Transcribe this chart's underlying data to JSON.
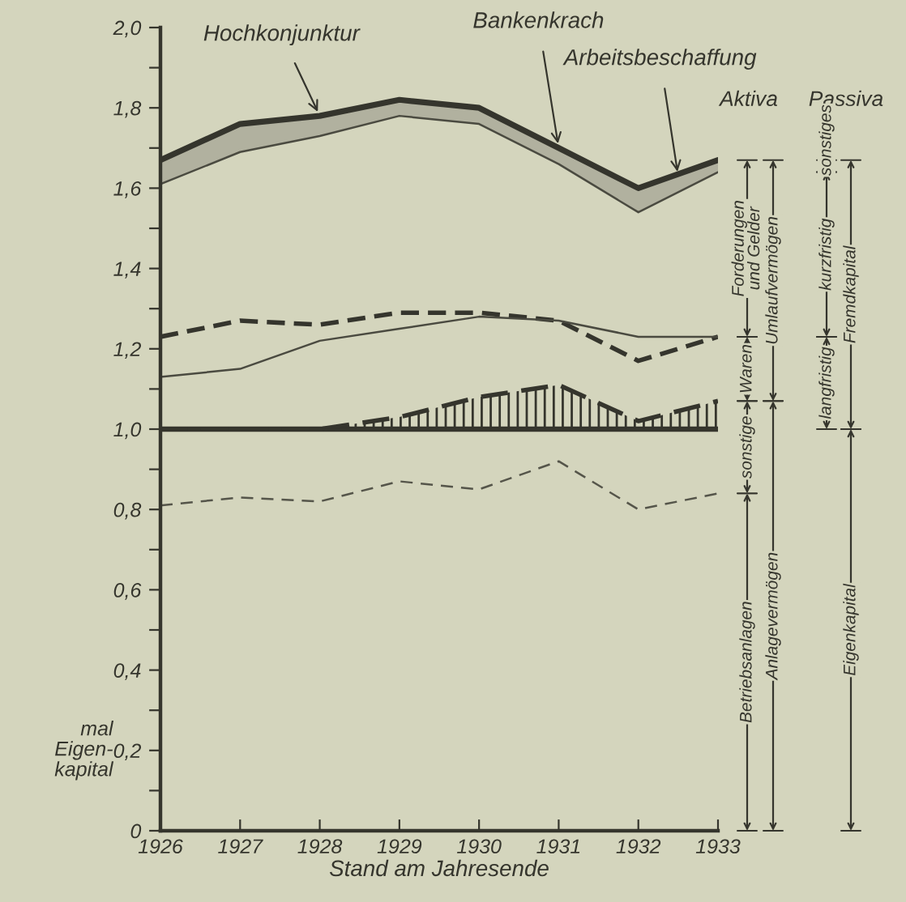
{
  "chart_data": {
    "type": "line",
    "xlabel": "Stand am Jahresende",
    "ylabel": "mal\nEigen-\nkapital",
    "x": [
      1926,
      1927,
      1928,
      1929,
      1930,
      1931,
      1932,
      1933
    ],
    "xlim": [
      1926,
      1933
    ],
    "xticks": [
      1926,
      1927,
      1928,
      1929,
      1930,
      1931,
      1932,
      1933
    ],
    "ylim": [
      0,
      2.0
    ],
    "yticks": [
      {
        "value": 0,
        "label": "0"
      },
      {
        "value": 0.1,
        "label": null
      },
      {
        "value": 0.2,
        "label": "0,2"
      },
      {
        "value": 0.3,
        "label": null
      },
      {
        "value": 0.4,
        "label": "0,4"
      },
      {
        "value": 0.5,
        "label": null
      },
      {
        "value": 0.6,
        "label": "0,6"
      },
      {
        "value": 0.7,
        "label": null
      },
      {
        "value": 0.8,
        "label": "0,8"
      },
      {
        "value": 0.9,
        "label": null
      },
      {
        "value": 1.0,
        "label": "1,0"
      },
      {
        "value": 1.1,
        "label": null
      },
      {
        "value": 1.2,
        "label": "1,2"
      },
      {
        "value": 1.3,
        "label": null
      },
      {
        "value": 1.4,
        "label": "1,4"
      },
      {
        "value": 1.5,
        "label": null
      },
      {
        "value": 1.6,
        "label": "1,6"
      },
      {
        "value": 1.7,
        "label": null
      },
      {
        "value": 1.8,
        "label": "1,8"
      },
      {
        "value": 1.9,
        "label": null
      },
      {
        "value": 2.0,
        "label": "2,0"
      }
    ],
    "grid": false,
    "ref_lines": [
      {
        "axis": "y",
        "value": 1.0,
        "color": "#35352d"
      }
    ],
    "series": [
      {
        "color": "#35352d",
        "line_style": "solid",
        "values": [
          1.67,
          1.76,
          1.78,
          1.82,
          1.8,
          1.7,
          1.6,
          1.67
        ],
        "lower": [
          1.61,
          1.69,
          1.73,
          1.78,
          1.76,
          1.66,
          1.54,
          1.64
        ],
        "upper": [
          1.67,
          1.76,
          1.78,
          1.82,
          1.8,
          1.7,
          1.6,
          1.67
        ]
      },
      {
        "color": "#4a4a40",
        "line_style": "solid",
        "values": [
          1.61,
          1.69,
          1.73,
          1.78,
          1.76,
          1.66,
          1.54,
          1.64
        ]
      },
      {
        "color": "#35352d",
        "line_style": "dashed",
        "values": [
          1.23,
          1.27,
          1.26,
          1.29,
          1.29,
          1.27,
          1.17,
          1.23
        ]
      },
      {
        "color": "#4a4a40",
        "line_style": "solid",
        "values": [
          1.13,
          1.15,
          1.22,
          1.25,
          1.28,
          1.27,
          1.23,
          1.23
        ]
      },
      {
        "color": "#35352d",
        "line_style": "dashed",
        "values": [
          1.0,
          1.0,
          1.0,
          1.03,
          1.08,
          1.11,
          1.02,
          1.07
        ],
        "lower": [
          1.0,
          1.0,
          1.0,
          1.0,
          1.0,
          1.0,
          1.0,
          1.0
        ],
        "upper": [
          1.0,
          1.0,
          1.0,
          1.03,
          1.08,
          1.11,
          1.02,
          1.07
        ]
      },
      {
        "color": "#55554a",
        "line_style": "dashed",
        "values": [
          0.81,
          0.83,
          0.82,
          0.87,
          0.85,
          0.92,
          0.8,
          0.84
        ]
      }
    ],
    "annotations": [
      {
        "text": "Hochkonjunktur",
        "x": 1928,
        "y": 1.78
      },
      {
        "text": "Bankenkrach",
        "x": 1931,
        "y": 1.7
      },
      {
        "text": "Arbeitsbeschaffung",
        "x": 1932.5,
        "y": 1.63
      },
      "Aktiva",
      "Passiva",
      "Forderungen\nund Gelder",
      "Waren",
      "sonstige",
      "Betriebsanlagen",
      "Umlaufvermögen",
      "Anlagevermögen",
      "sonstiges",
      "kurzfristig",
      "langfristig",
      "Fremdkapital",
      "Eigenkapital"
    ]
  }
}
